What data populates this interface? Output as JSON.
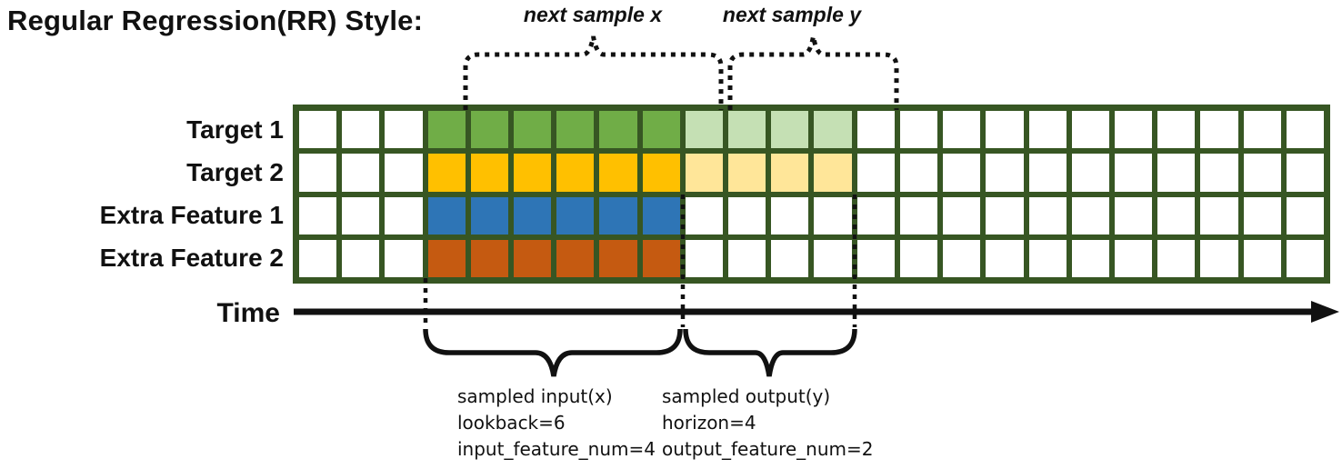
{
  "title": "Regular Regression(RR) Style:",
  "annotations": {
    "next_sample_x": "next sample x",
    "next_sample_y": "next sample y"
  },
  "rows": [
    {
      "label": "Target 1",
      "input_color": "#70AD47",
      "output_color": "#C5E0B4"
    },
    {
      "label": "Target 2",
      "input_color": "#FFC000",
      "output_color": "#FFE699"
    },
    {
      "label": "Extra Feature 1",
      "input_color": "#2E75B6",
      "output_color": null
    },
    {
      "label": "Extra Feature 2",
      "input_color": "#C55A11",
      "output_color": null
    }
  ],
  "grid": {
    "columns": 24,
    "rows": 4,
    "input_start": 3,
    "lookback": 6,
    "horizon": 4,
    "border_color": "#375623",
    "empty_color": "#FFFFFF"
  },
  "time_axis": {
    "label": "Time"
  },
  "sampled_input": {
    "lines": [
      "sampled input(x)",
      "lookback=6",
      "input_feature_num=4"
    ]
  },
  "sampled_output": {
    "lines": [
      "sampled output(y)",
      "horizon=4",
      "output_feature_num=2"
    ]
  }
}
